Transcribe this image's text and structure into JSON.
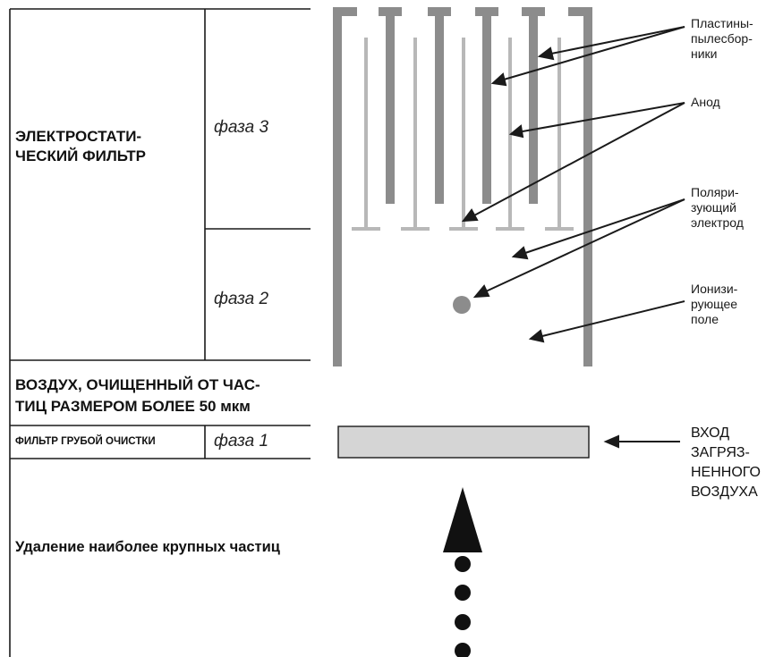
{
  "left_panel": {
    "electrostatic_title_l1": "ЭЛЕКТРОСТАТИ-",
    "electrostatic_title_l2": "ЧЕСКИЙ ФИЛЬТР",
    "phase3": "фаза 3",
    "phase2": "фаза 2",
    "phase1": "фаза 1",
    "clean_air_l1": "ВОЗДУХ, ОЧИЩЕННЫЙ ОТ ЧАС-",
    "clean_air_l2": "ТИЦ РАЗМЕРОМ БОЛЕЕ 50 мкм",
    "coarse_filter": "ФИЛЬТР ГРУБОЙ ОЧИСТКИ",
    "large_particles": "Удаление наиболее крупных частиц"
  },
  "callouts": {
    "collector_plates_l1": "Пластины-",
    "collector_plates_l2": "пылесбор-",
    "collector_plates_l3": "ники",
    "anode": "Анод",
    "polarizing_l1": "Поляри-",
    "polarizing_l2": "зующий",
    "polarizing_l3": "электрод",
    "ionizing_l1": "Ионизи-",
    "ionizing_l2": "рующее",
    "ionizing_l3": "поле",
    "inlet_l1": "ВХОД",
    "inlet_l2": "ЗАГРЯЗ-",
    "inlet_l3": "НЕННОГО",
    "inlet_l4": "ВОЗДУХА"
  },
  "colors": {
    "plate": "#8c8c8c",
    "anode": "#b8b8b8",
    "coarse_filter_fill": "#d5d5d5",
    "line": "#1a1a1a"
  }
}
